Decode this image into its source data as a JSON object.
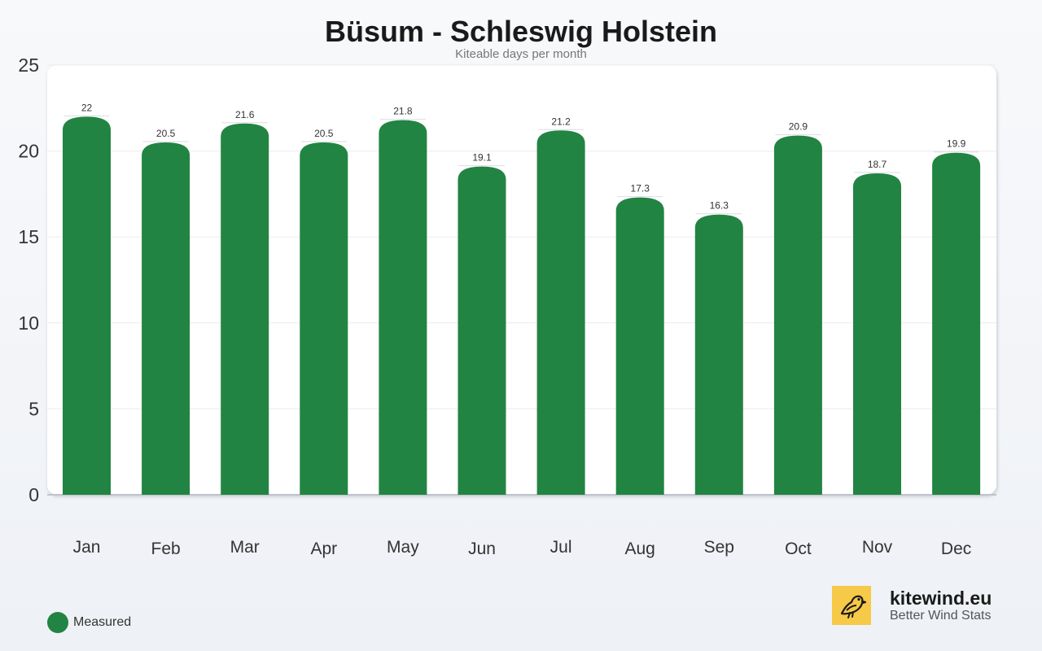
{
  "chart_data": {
    "type": "bar",
    "title": "Büsum - Schleswig Holstein",
    "subtitle": "Kiteable days per month",
    "categories": [
      "Jan",
      "Feb",
      "Mar",
      "Apr",
      "May",
      "Jun",
      "Jul",
      "Aug",
      "Sep",
      "Oct",
      "Nov",
      "Dec"
    ],
    "series": [
      {
        "name": "Measured",
        "values": [
          22,
          20.5,
          21.6,
          20.5,
          21.8,
          19.1,
          21.2,
          17.3,
          16.3,
          20.9,
          18.7,
          19.9
        ],
        "color": "#228442"
      }
    ],
    "data_labels": [
      "22",
      "20.5",
      "21.6",
      "20.5",
      "21.8",
      "19.1",
      "21.2",
      "17.3",
      "16.3",
      "20.9",
      "18.7",
      "19.9"
    ],
    "ylim": [
      0,
      25
    ],
    "yticks": [
      "0",
      "5",
      "10",
      "15",
      "20",
      "25"
    ],
    "xlabel": "",
    "ylabel": "",
    "grid": true,
    "legend_position": "bottom-left"
  },
  "legend": {
    "label": "Measured",
    "color": "#228442"
  },
  "brand": {
    "name": "kitewind.eu",
    "tagline": "Better Wind Stats",
    "logo_icon": "bird-icon",
    "logo_color": "#f7c948"
  }
}
